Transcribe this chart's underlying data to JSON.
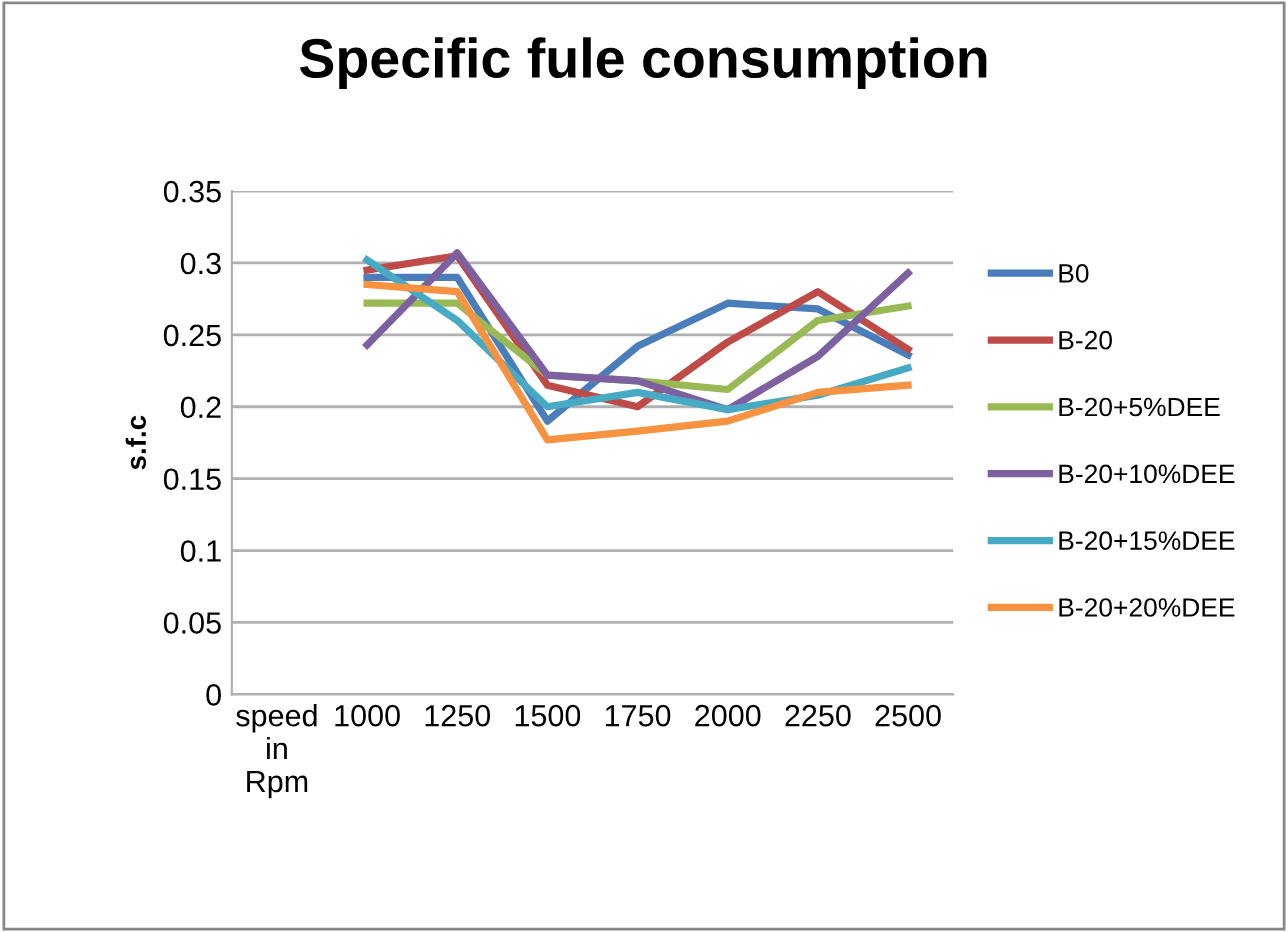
{
  "chart_data": {
    "type": "line",
    "title": "Specific fule consumption",
    "ylabel": "s.f.c",
    "categories": [
      "speed\nin\nRpm",
      "1000",
      "1250",
      "1500",
      "1750",
      "2000",
      "2250",
      "2500"
    ],
    "series": [
      {
        "name": "B0",
        "color": "#4a7ebb",
        "values": [
          null,
          0.29,
          0.29,
          0.19,
          0.242,
          0.272,
          0.268,
          0.236
        ]
      },
      {
        "name": "B-20",
        "color": "#be4b48",
        "values": [
          null,
          0.295,
          0.305,
          0.215,
          0.2,
          0.245,
          0.28,
          0.24
        ]
      },
      {
        "name": "B-20+5%DEE",
        "color": "#98b954",
        "values": [
          null,
          0.272,
          0.272,
          0.222,
          0.218,
          0.212,
          0.26,
          0.27
        ]
      },
      {
        "name": "B-20+10%DEE",
        "color": "#7d60a0",
        "values": [
          null,
          0.243,
          0.307,
          0.222,
          0.218,
          0.198,
          0.235,
          0.293
        ]
      },
      {
        "name": "B-20+15%DEE",
        "color": "#46aac5",
        "values": [
          null,
          0.302,
          0.26,
          0.2,
          0.21,
          0.198,
          0.208,
          0.227
        ]
      },
      {
        "name": "B-20+20%DEE",
        "color": "#f69240",
        "values": [
          null,
          0.285,
          0.28,
          0.177,
          0.183,
          0.19,
          0.21,
          0.215
        ]
      }
    ],
    "ylim": [
      0,
      0.35
    ],
    "yticks": [
      0,
      0.05,
      0.1,
      0.15,
      0.2,
      0.25,
      0.3,
      0.35
    ],
    "grid": "y",
    "legend": "right",
    "marker": "none",
    "line_style": "solid"
  }
}
